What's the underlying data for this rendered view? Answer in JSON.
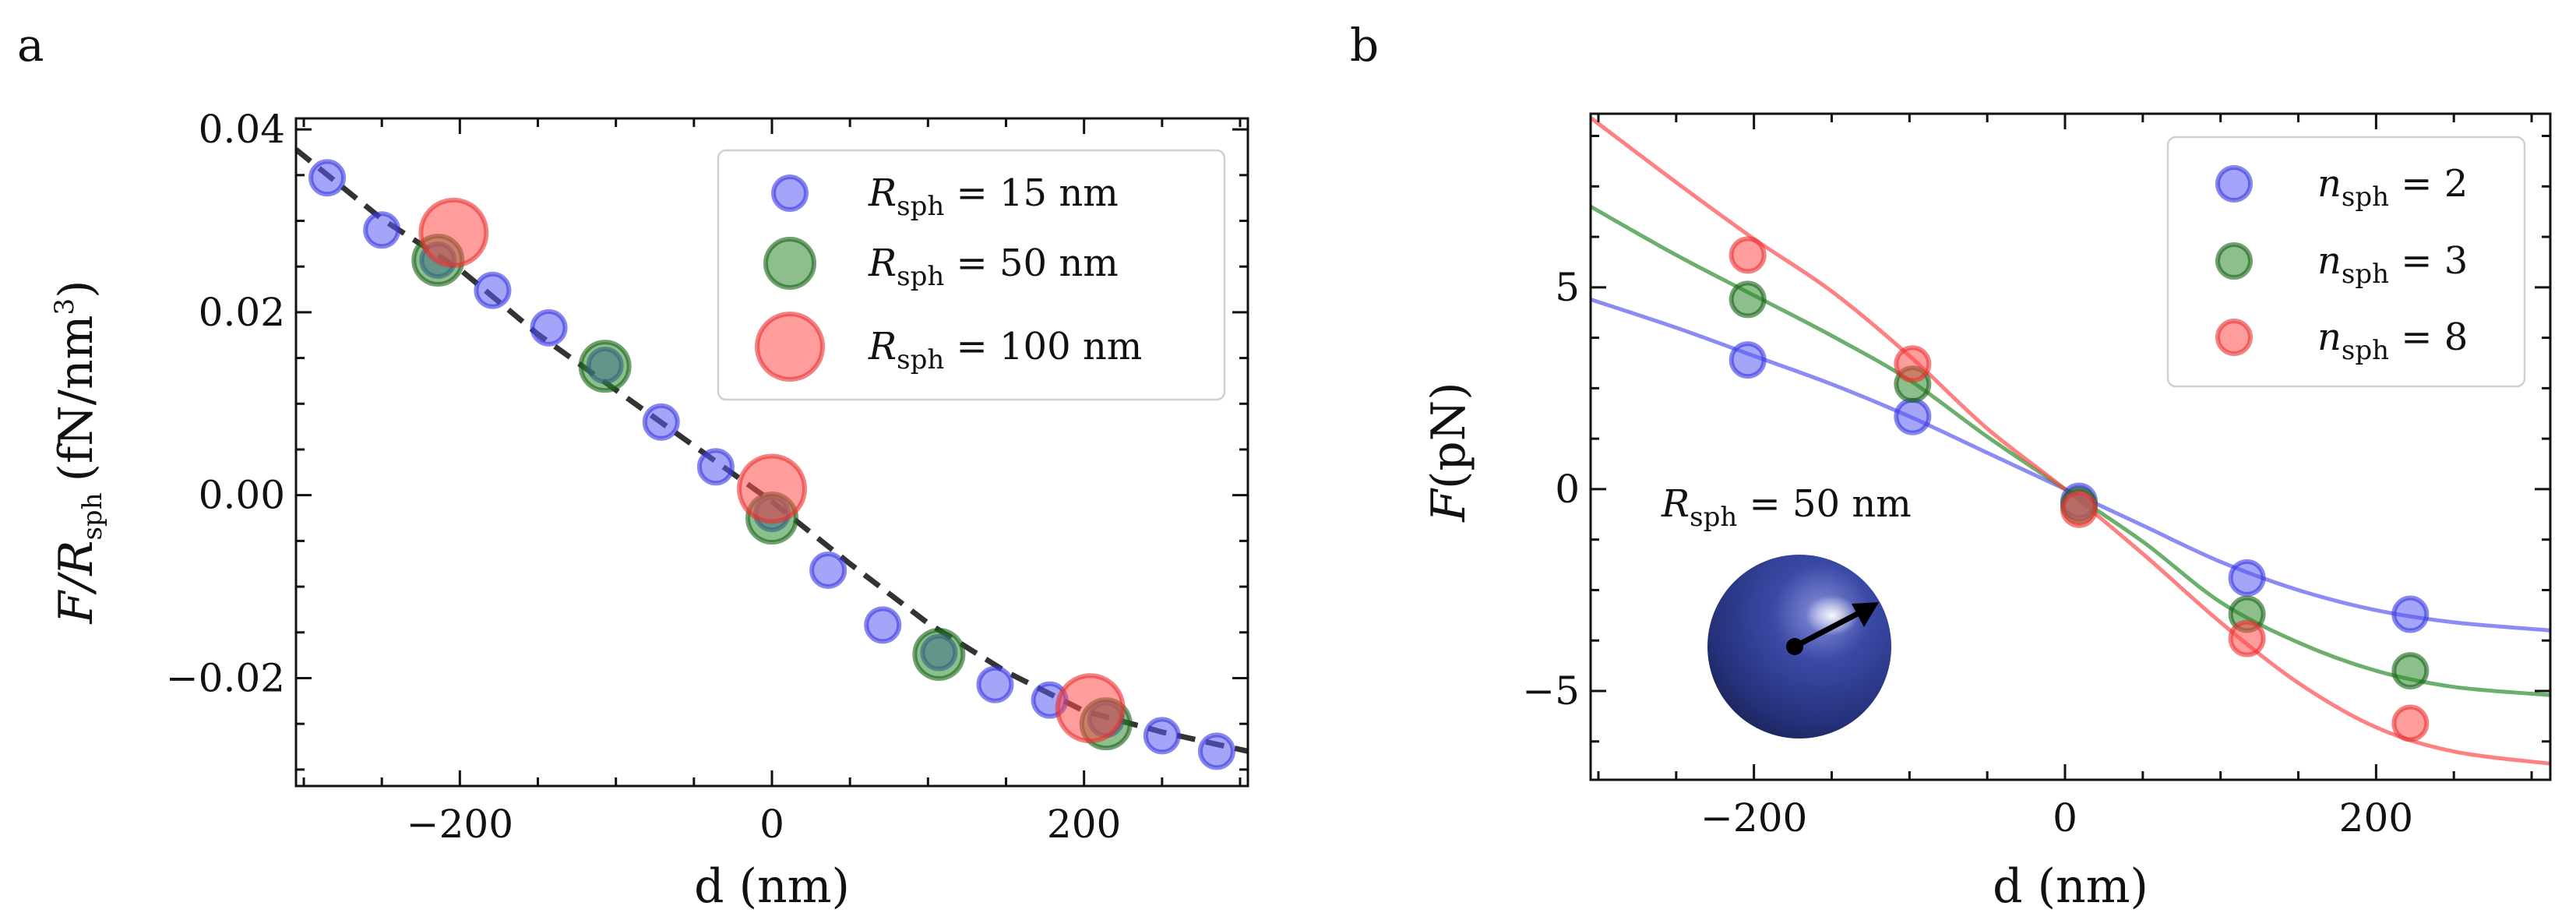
{
  "chart_data": [
    {
      "panel_label": "a",
      "type": "scatter",
      "xlabel": {
        "main": "d",
        "unit": "(nm)"
      },
      "ylabel": {
        "italic": "F/R",
        "sub": "sph",
        "unit": "(fN/nm",
        "sup": "3",
        "close": ")"
      },
      "xlim": [
        -305,
        305
      ],
      "ylim": [
        -0.0318,
        0.0412
      ],
      "xticks": [
        -200,
        0,
        200
      ],
      "xtick_labels": [
        "−200",
        "0",
        "200"
      ],
      "yticks": [
        -0.02,
        0.0,
        0.02,
        0.04
      ],
      "ytick_labels": [
        "−0.02",
        "0.00",
        "0.02",
        "0.04"
      ],
      "legend_position": "top-right",
      "fit_line": {
        "style": "dashed",
        "color": "#333333",
        "x": [
          -305,
          -250,
          -200,
          -150,
          -100,
          -50,
          0,
          50,
          100,
          150,
          200,
          250,
          305
        ],
        "y": [
          0.0378,
          0.0302,
          0.0247,
          0.0176,
          0.0115,
          0.0054,
          -0.0007,
          -0.0075,
          -0.014,
          -0.0193,
          -0.0236,
          -0.0259,
          -0.028
        ]
      },
      "series": [
        {
          "label_italic": "R",
          "label_sub": "sph",
          "label_rest": " = 15 nm",
          "color": "#5a5af2",
          "edge": "#3535e0",
          "r": 21,
          "x": [
            -285,
            -250,
            -214,
            -179,
            -143,
            -107,
            -71,
            -36,
            0,
            36,
            71,
            107,
            143,
            178,
            214,
            250,
            285
          ],
          "y": [
            0.0347,
            0.029,
            0.0257,
            0.0224,
            0.0183,
            0.0142,
            0.008,
            0.0031,
            -0.002,
            -0.0082,
            -0.0142,
            -0.0172,
            -0.0207,
            -0.0224,
            -0.0245,
            -0.0263,
            -0.028
          ]
        },
        {
          "label_italic": "R",
          "label_sub": "sph",
          "label_rest": " = 50 nm",
          "color": "#2e8b2e",
          "edge": "#166016",
          "r": 31,
          "x": [
            -214,
            -107,
            0,
            107,
            214
          ],
          "y": [
            0.0257,
            0.0141,
            -0.0025,
            -0.0174,
            -0.025
          ]
        },
        {
          "label_italic": "R",
          "label_sub": "sph",
          "label_rest": " = 100 nm",
          "color": "#ff4a4a",
          "edge": "#e83030",
          "r": 42,
          "x": [
            -204,
            0,
            204
          ],
          "y": [
            0.0287,
            0.0007,
            -0.0233
          ]
        }
      ]
    },
    {
      "panel_label": "b",
      "type": "scatter",
      "xlabel": {
        "main": "d",
        "unit": "(nm)"
      },
      "ylabel": {
        "italic": "F",
        "unit": "(pN)"
      },
      "xlim": [
        -305,
        312
      ],
      "ylim": [
        -7.2,
        9.3
      ],
      "xticks": [
        -200,
        0,
        200
      ],
      "xtick_labels": [
        "−200",
        "0",
        "200"
      ],
      "yticks": [
        -5,
        0,
        5
      ],
      "ytick_labels": [
        "−5",
        "0",
        "5"
      ],
      "legend_position": "top-right",
      "annotation": {
        "italic": "R",
        "sub": "sph",
        "rest": " = 50 nm"
      },
      "curves": [
        {
          "color": "#5a5af2",
          "x": [
            -305,
            -250,
            -200,
            -150,
            -100,
            -50,
            0,
            50,
            100,
            150,
            200,
            250,
            312
          ],
          "y": [
            4.7,
            4.0,
            3.3,
            2.6,
            1.8,
            0.9,
            0.0,
            -0.9,
            -1.8,
            -2.5,
            -3.0,
            -3.3,
            -3.5
          ]
        },
        {
          "color": "#2e8b2e",
          "x": [
            -305,
            -250,
            -200,
            -150,
            -100,
            -50,
            0,
            50,
            100,
            150,
            200,
            250,
            312
          ],
          "y": [
            7.0,
            5.8,
            4.8,
            3.8,
            2.7,
            1.3,
            0.0,
            -1.3,
            -2.8,
            -3.8,
            -4.5,
            -4.9,
            -5.1
          ]
        },
        {
          "color": "#ff4a4a",
          "x": [
            -305,
            -250,
            -200,
            -150,
            -100,
            -50,
            0,
            50,
            100,
            150,
            200,
            250,
            312
          ],
          "y": [
            9.2,
            7.6,
            6.2,
            4.9,
            3.3,
            1.5,
            0.0,
            -1.6,
            -3.3,
            -4.8,
            -5.9,
            -6.5,
            -6.8
          ]
        }
      ],
      "series": [
        {
          "label_italic": "n",
          "label_sub": "sph",
          "label_rest": " = 2",
          "color": "#5a5af2",
          "edge": "#3535e0",
          "r": 21,
          "x": [
            -204,
            -98,
            9,
            117,
            222
          ],
          "y": [
            3.2,
            1.8,
            -0.3,
            -2.2,
            -3.1
          ]
        },
        {
          "label_italic": "n",
          "label_sub": "sph",
          "label_rest": " = 3",
          "color": "#2e8b2e",
          "edge": "#166016",
          "r": 21,
          "x": [
            -204,
            -98,
            9,
            117,
            222
          ],
          "y": [
            4.7,
            2.6,
            -0.4,
            -3.1,
            -4.5
          ]
        },
        {
          "label_italic": "n",
          "label_sub": "sph",
          "label_rest": " = 8",
          "color": "#ff4a4a",
          "edge": "#e83030",
          "r": 21,
          "x": [
            -204,
            -98,
            9,
            117,
            222
          ],
          "y": [
            5.8,
            3.1,
            -0.5,
            -3.7,
            -5.8
          ]
        }
      ]
    }
  ]
}
